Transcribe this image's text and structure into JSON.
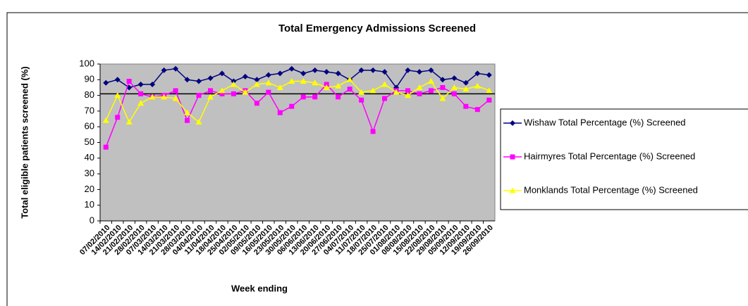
{
  "chart_data": {
    "type": "line",
    "title": "Total Emergency Admissions Screened",
    "x_label": "Week ending",
    "y_label": "Total eligible patients screened (%)",
    "categories": [
      "07/02/2010",
      "14/02/2010",
      "21/02/2010",
      "28/02/2010",
      "07/03/2010",
      "14/03/2010",
      "21/03/2010",
      "28/03/2010",
      "04/04/2010",
      "11/04/2010",
      "18/04/2010",
      "25/04/2010",
      "02/05/2010",
      "09/05/2010",
      "16/05/2010",
      "23/05/2010",
      "30/05/2010",
      "06/06/2010",
      "13/06/2010",
      "20/06/2010",
      "27/06/2010",
      "04/07/2010",
      "11/07/2010",
      "18/07/2010",
      "25/07/2010",
      "01/08/2010",
      "08/08/2010",
      "15/08/2010",
      "22/08/2010",
      "29/08/2010",
      "05/09/2010",
      "12/09/2010",
      "19/09/2010",
      "26/09/2010"
    ],
    "series": [
      {
        "name": "Wishaw Total Percentage (%) Screened",
        "color": "#000080",
        "marker": "diamond",
        "values": [
          88,
          90,
          85,
          87,
          87,
          96,
          97,
          90,
          89,
          91,
          94,
          89,
          92,
          90,
          93,
          94,
          97,
          94,
          96,
          95,
          94,
          90,
          96,
          96,
          95,
          85,
          96,
          95,
          96,
          90,
          91,
          88,
          94,
          93
        ]
      },
      {
        "name": "Hairmyres Total Percentage (%) Screened",
        "color": "#ff00ff",
        "marker": "square",
        "values": [
          47,
          66,
          89,
          81,
          79,
          80,
          83,
          64,
          80,
          83,
          81,
          81,
          83,
          75,
          82,
          69,
          73,
          79,
          79,
          87,
          79,
          84,
          77,
          57,
          78,
          83,
          83,
          81,
          83,
          85,
          81,
          73,
          71,
          77
        ]
      },
      {
        "name": "Monklands Total Percentage (%) Screened",
        "color": "#ffff00",
        "marker": "triangle",
        "values": [
          64,
          80,
          63,
          75,
          79,
          79,
          78,
          69,
          63,
          79,
          83,
          87,
          82,
          87,
          88,
          85,
          89,
          89,
          88,
          85,
          86,
          90,
          82,
          83,
          87,
          82,
          80,
          85,
          89,
          78,
          85,
          84,
          86,
          83
        ]
      }
    ],
    "reference_line": 81,
    "ylim": [
      0,
      100
    ],
    "yticks": [
      0,
      10,
      20,
      30,
      40,
      50,
      60,
      70,
      80,
      90,
      100
    ],
    "grid": false,
    "plot_background": "#c0c0c0",
    "legend": "right"
  }
}
